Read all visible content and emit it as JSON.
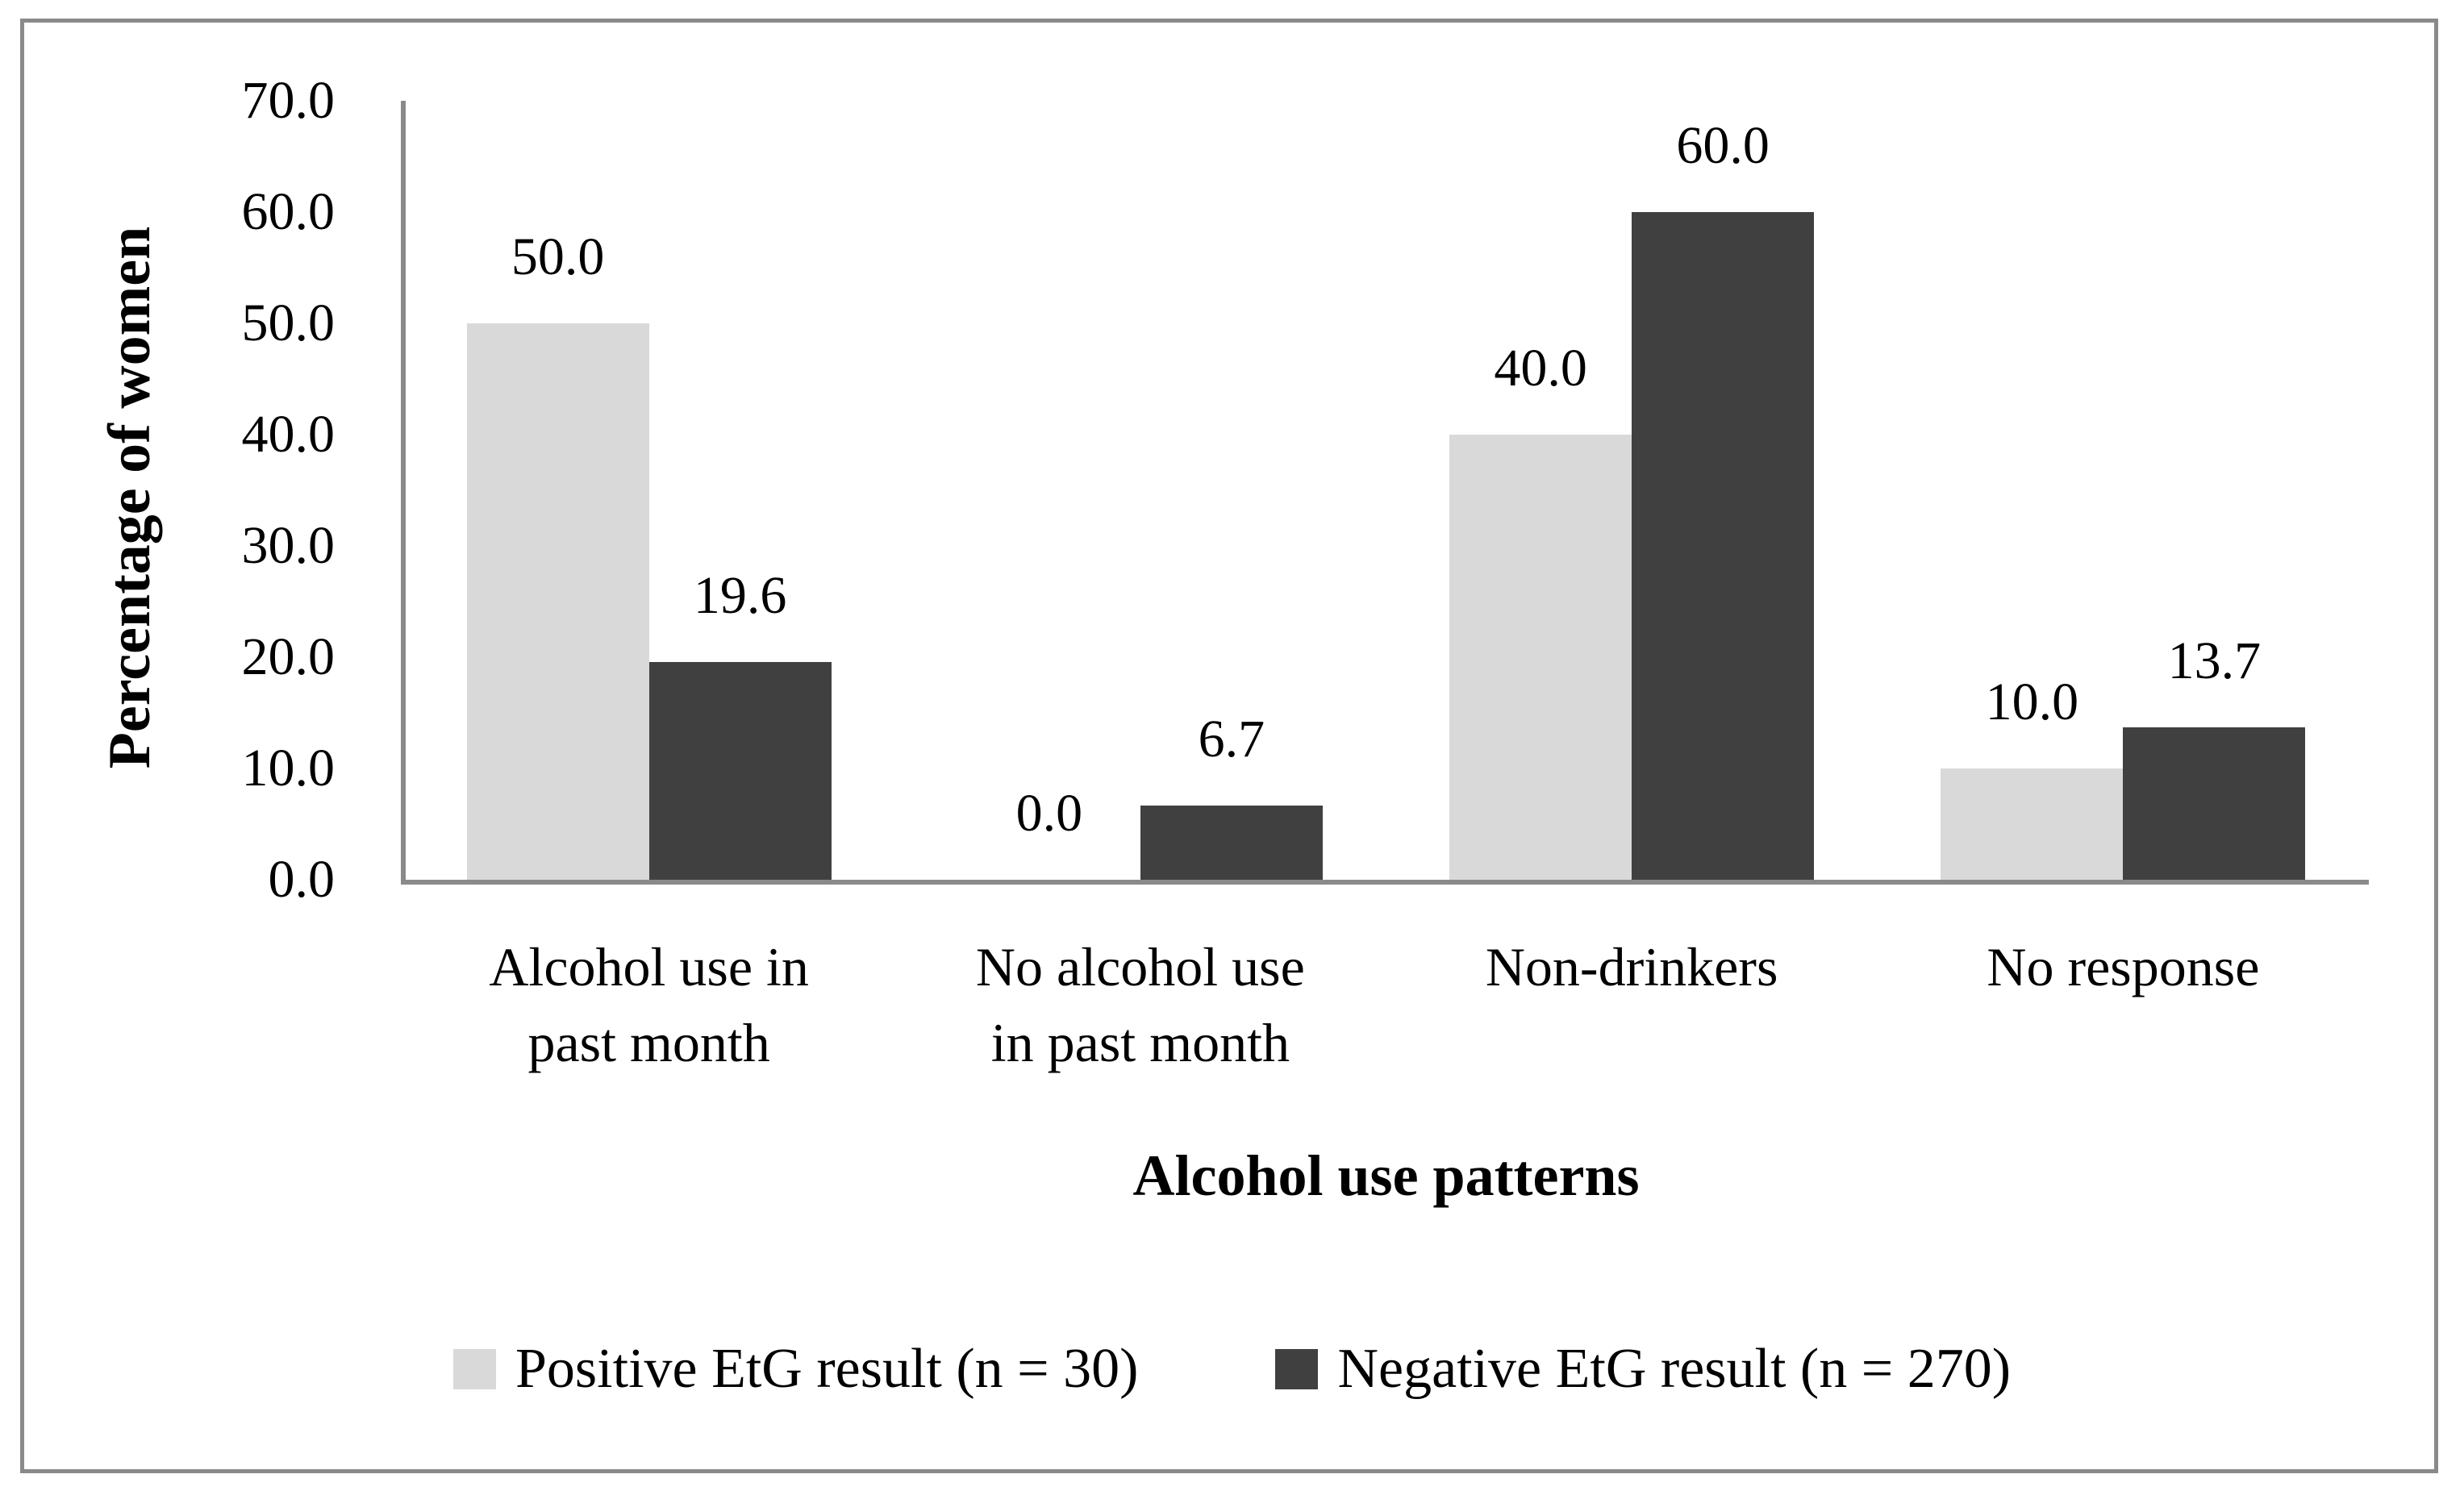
{
  "figure": {
    "border_color": "#8a8a8a",
    "background": "#ffffff",
    "axis_color": "#8a8a8a",
    "text_color": "#000000"
  },
  "chart_data": {
    "type": "bar",
    "categories": [
      "Alcohol use in\npast month",
      "No alcohol use\nin past month",
      "Non-drinkers",
      "No response"
    ],
    "series": [
      {
        "name": "Positive EtG result (n = 30)",
        "color": "#d9d9d9",
        "values": [
          50.0,
          0.0,
          40.0,
          10.0
        ]
      },
      {
        "name": "Negative EtG result (n = 270)",
        "color": "#404040",
        "values": [
          19.6,
          6.7,
          60.0,
          13.7
        ]
      }
    ],
    "data_labels": [
      [
        "50.0",
        "0.0",
        "40.0",
        "10.0"
      ],
      [
        "19.6",
        "6.7",
        "60.0",
        "13.7"
      ]
    ],
    "xlabel": "Alcohol use patterns",
    "ylabel": "Percentage of women",
    "ylim": [
      0,
      70
    ],
    "ytick_step": 10,
    "ytick_labels": [
      "0.0",
      "10.0",
      "20.0",
      "30.0",
      "40.0",
      "50.0",
      "60.0",
      "70.0"
    ],
    "grid": false,
    "legend_position": "bottom"
  }
}
